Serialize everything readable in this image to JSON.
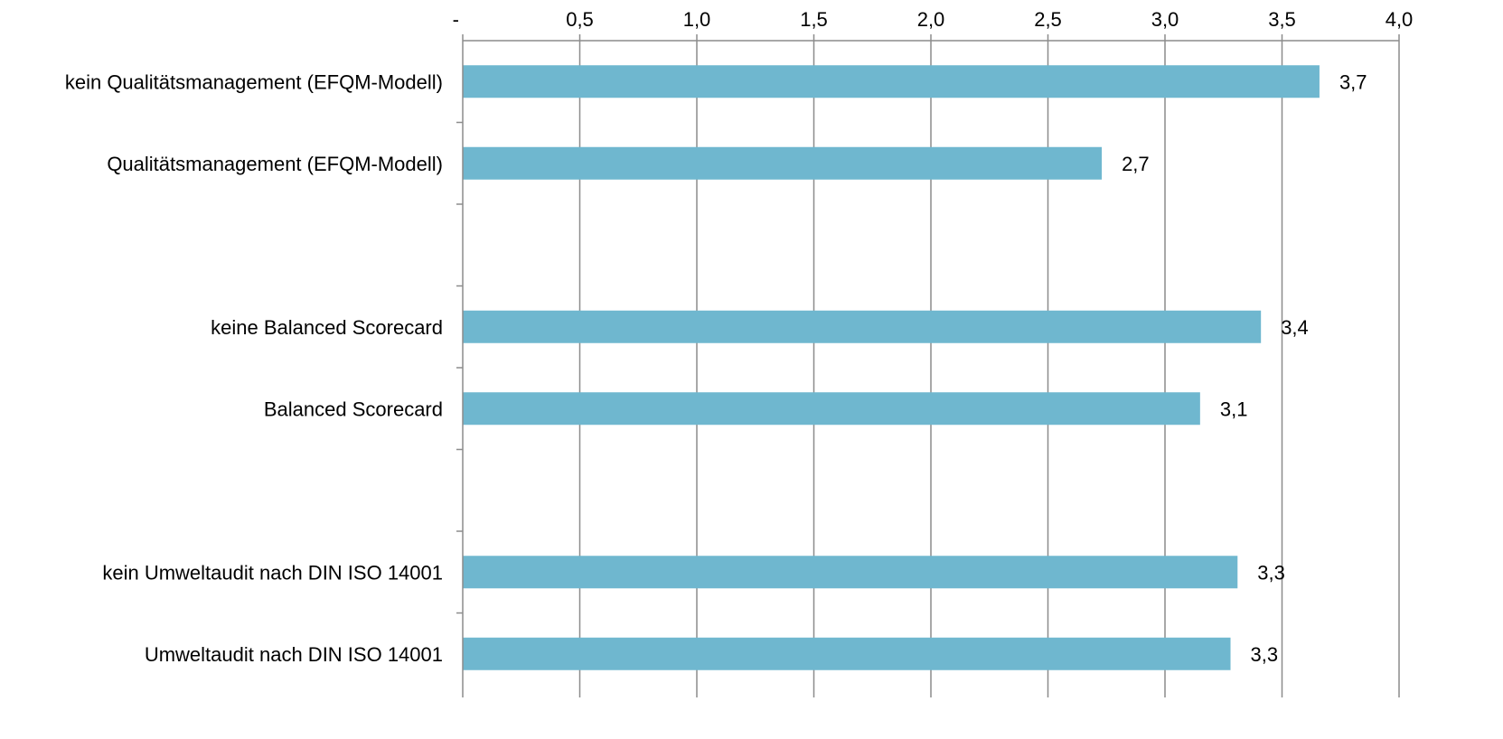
{
  "chart_data": {
    "type": "bar",
    "orientation": "horizontal",
    "x_axis_position": "top",
    "title": "",
    "xlabel": "",
    "ylabel": "",
    "xlim": [
      0,
      4.0
    ],
    "x_ticks": [
      0,
      0.5,
      1.0,
      1.5,
      2.0,
      2.5,
      3.0,
      3.5,
      4.0
    ],
    "x_tick_labels": [
      "-",
      "0,5",
      "1,0",
      "1,5",
      "2,0",
      "2,5",
      "3,0",
      "3,5",
      "4,0"
    ],
    "grid": "vertical",
    "bar_color": "#6fb7cf",
    "grid_color": "#8c8c8c",
    "groups": [
      {
        "categories": [
          "kein Qualitätsmanagement (EFQM-Modell)",
          "Qualitätsmanagement (EFQM-Modell)"
        ],
        "values": [
          3.66,
          2.73
        ],
        "value_labels": [
          "3,7",
          "2,7"
        ]
      },
      {
        "categories": [
          "keine Balanced Scorecard",
          "Balanced Scorecard"
        ],
        "values": [
          3.41,
          3.15
        ],
        "value_labels": [
          "3,4",
          "3,1"
        ]
      },
      {
        "categories": [
          "kein Umweltaudit nach DIN ISO 14001",
          "Umweltaudit nach DIN ISO 14001"
        ],
        "values": [
          3.31,
          3.28
        ],
        "value_labels": [
          "3,3",
          "3,3"
        ]
      }
    ]
  }
}
